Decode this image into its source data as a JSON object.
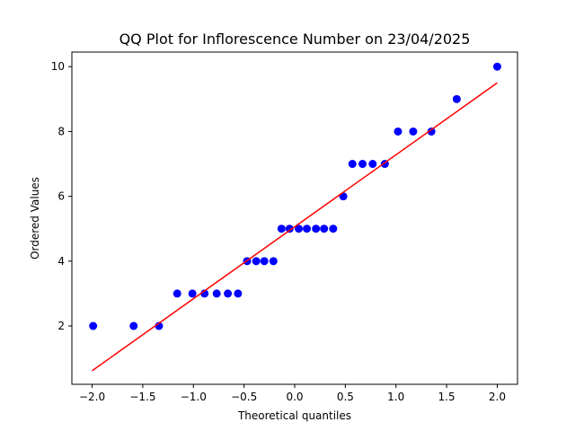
{
  "chart_data": {
    "type": "scatter",
    "title": "QQ Plot for Inflorescence Number on 23/04/2025",
    "xlabel": "Theoretical quantiles",
    "ylabel": "Ordered Values",
    "xlim": [
      -2.2,
      2.2
    ],
    "ylim": [
      0.2,
      10.45
    ],
    "x_ticks": [
      -2.0,
      -1.5,
      -1.0,
      -0.5,
      0.0,
      0.5,
      1.0,
      1.5,
      2.0
    ],
    "x_tick_labels": [
      "−2.0",
      "−1.5",
      "−1.0",
      "−0.5",
      "0.0",
      "0.5",
      "1.0",
      "1.5",
      "2.0"
    ],
    "y_ticks": [
      2,
      4,
      6,
      8,
      10
    ],
    "y_tick_labels": [
      "2",
      "4",
      "6",
      "8",
      "10"
    ],
    "grid": false,
    "points": {
      "color": "#0000ff",
      "x": [
        -1.99,
        -1.59,
        -1.34,
        -1.16,
        -1.01,
        -0.89,
        -0.77,
        -0.66,
        -0.56,
        -0.47,
        -0.38,
        -0.3,
        -0.21,
        -0.13,
        -0.05,
        0.04,
        0.12,
        0.21,
        0.29,
        0.38,
        0.48,
        0.57,
        0.67,
        0.77,
        0.89,
        1.02,
        1.17,
        1.35,
        1.6,
        2.0
      ],
      "y": [
        2,
        2,
        2,
        3,
        3,
        3,
        3,
        3,
        3,
        4,
        4,
        4,
        4,
        5,
        5,
        5,
        5,
        5,
        5,
        5,
        6,
        7,
        7,
        7,
        7,
        8,
        8,
        8,
        9,
        10
      ]
    },
    "fit_line": {
      "color": "#ff0000",
      "x": [
        -2.0,
        2.0
      ],
      "y": [
        0.62,
        9.5
      ]
    }
  }
}
